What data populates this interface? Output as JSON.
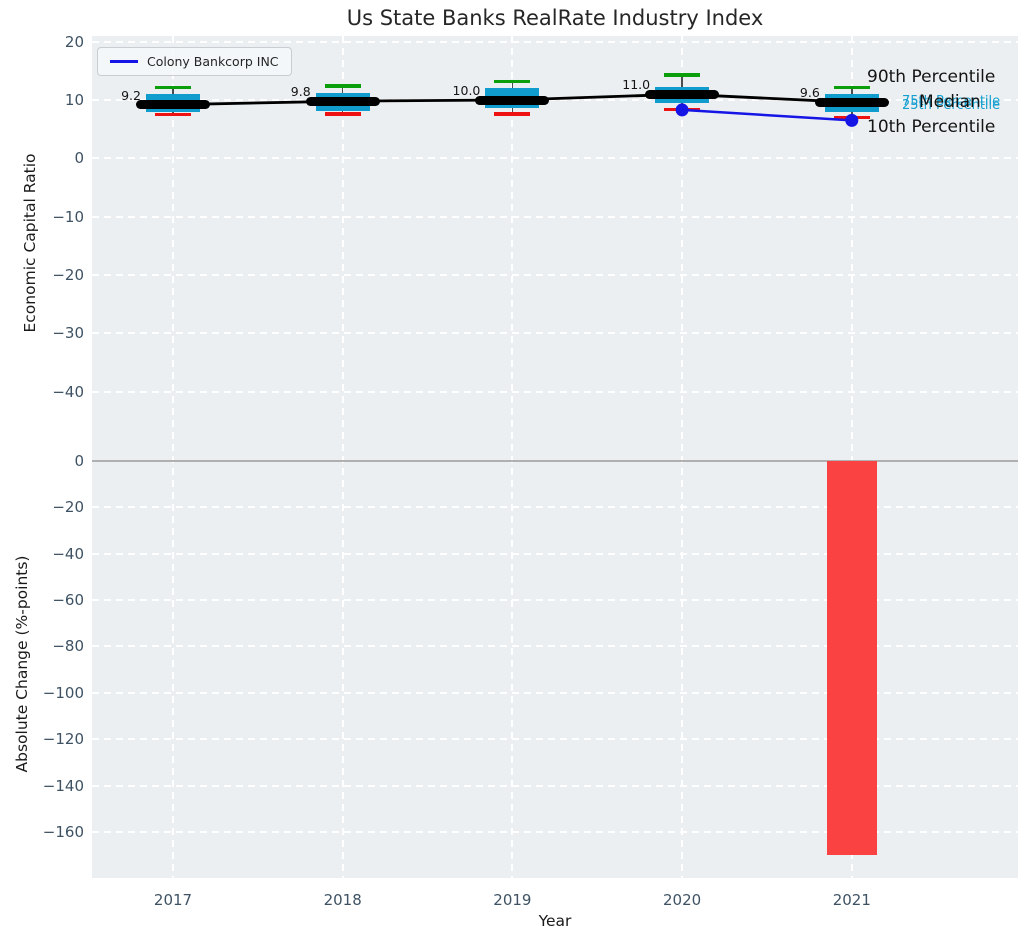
{
  "title": "Us State Banks RealRate Industry Index",
  "legend": {
    "label": "Colony Bankcorp INC"
  },
  "annotations": {
    "p90": "90th Percentile",
    "median": "Median",
    "p75": "75th Percentile",
    "p25": "25th Percentile",
    "p10": "10th Percentile"
  },
  "axis": {
    "top_ylabel": "Economic Capital Ratio",
    "bottom_ylabel": "Absolute Change (%-points)",
    "xlabel": "Year",
    "xticklabels": [
      "2017",
      "2018",
      "2019",
      "2020",
      "2021"
    ],
    "top_yticks": [
      20,
      10,
      0,
      -10,
      -20,
      -30,
      -40
    ],
    "top_yticklabels": [
      "20",
      "10",
      "0",
      "−10",
      "−20",
      "−30",
      "−40"
    ],
    "bottom_yticks": [
      0,
      -20,
      -40,
      -60,
      -80,
      -100,
      -120,
      -140,
      -160
    ],
    "bottom_yticklabels": [
      "0",
      "−20",
      "−40",
      "−60",
      "−80",
      "−100",
      "−120",
      "−140",
      "−160"
    ]
  },
  "colors": {
    "box_fill": "#109dcd",
    "cap_top_green": "#0b9e0b",
    "cap_bottom_red": "#ee1111",
    "median_black": "#000000",
    "company_blue": "#1515e6",
    "bar_red": "#fb4242",
    "axes_bg": "#ECEFF1",
    "grid_white": "#ffffff",
    "tick_text": "#3e5263",
    "percentile_text": "#16a0cf",
    "zero_line": "#b0b0b0",
    "whisker": "#4d4d4d"
  },
  "chart_data": [
    {
      "type": "boxplot+line",
      "title": "Us State Banks RealRate Industry Index",
      "xlabel": "Year",
      "ylabel": "Economic Capital Ratio",
      "categories": [
        2017,
        2018,
        2019,
        2020,
        2021
      ],
      "ylim": [
        -50,
        21
      ],
      "grid": true,
      "legend_position": "upper left",
      "boxes": [
        {
          "year": 2017,
          "p90": 12.2,
          "p75": 11.1,
          "median": 9.2,
          "p25": 8.0,
          "p10": 7.5,
          "label": "9.2"
        },
        {
          "year": 2018,
          "p90": 12.4,
          "p75": 11.2,
          "median": 9.8,
          "p25": 8.1,
          "p10": 7.6,
          "label": "9.8"
        },
        {
          "year": 2019,
          "p90": 13.2,
          "p75": 12.0,
          "median": 10.0,
          "p25": 8.6,
          "p10": 7.6,
          "label": "10.0"
        },
        {
          "year": 2020,
          "p90": 14.3,
          "p75": 12.3,
          "median": 11.0,
          "p25": 9.4,
          "p10": 8.4,
          "label": "11.0"
        },
        {
          "year": 2021,
          "p90": 12.1,
          "p75": 11.1,
          "median": 9.6,
          "p25": 7.9,
          "p10": 7.0,
          "label": "9.6"
        }
      ],
      "series": [
        {
          "name": "Median",
          "x": [
            2017,
            2018,
            2019,
            2020,
            2021
          ],
          "values": [
            9.2,
            9.8,
            10.0,
            11.0,
            9.6
          ]
        },
        {
          "name": "Colony Bankcorp INC",
          "x": [
            2020,
            2021
          ],
          "values": [
            8.3,
            6.5
          ]
        }
      ]
    },
    {
      "type": "bar",
      "xlabel": "Year",
      "ylabel": "Absolute Change (%-points)",
      "categories": [
        2017,
        2018,
        2019,
        2020,
        2021
      ],
      "values": [
        null,
        null,
        null,
        null,
        -170
      ],
      "ylim": [
        -182,
        5
      ],
      "grid": true
    }
  ]
}
